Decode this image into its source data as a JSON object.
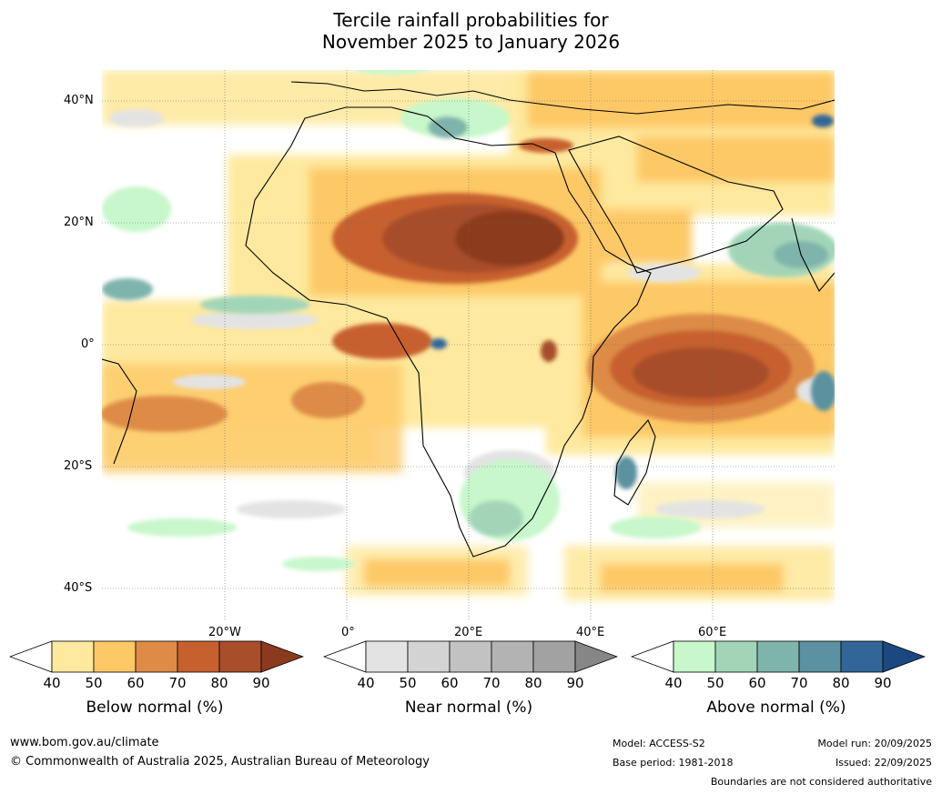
{
  "title": {
    "line1": "Tercile rainfall probabilities for",
    "line2": "November 2025 to January 2026"
  },
  "map": {
    "lat_labels": [
      "40°N",
      "20°N",
      "0°",
      "20°S",
      "40°S"
    ],
    "lon_labels": [
      "20°W",
      "0°",
      "20°E",
      "40°E",
      "60°E"
    ]
  },
  "colorbars": [
    {
      "label": "Below normal (%)",
      "ticks": [
        "40",
        "50",
        "60",
        "70",
        "80",
        "90"
      ],
      "colors": [
        "#ffffff",
        "#fee99e",
        "#fdc866",
        "#dd8b46",
        "#c7602f",
        "#a84e2a",
        "#8c3a1e"
      ]
    },
    {
      "label": "Near normal (%)",
      "ticks": [
        "40",
        "50",
        "60",
        "70",
        "80",
        "90"
      ],
      "colors": [
        "#ffffff",
        "#e3e3e3",
        "#d3d3d3",
        "#c2c2c2",
        "#b3b3b3",
        "#a2a2a2",
        "#868686"
      ]
    },
    {
      "label": "Above normal (%)",
      "ticks": [
        "40",
        "50",
        "60",
        "70",
        "80",
        "90"
      ],
      "colors": [
        "#ffffff",
        "#c7f7cb",
        "#a2d5b8",
        "#7fb4ab",
        "#5b91a0",
        "#336698",
        "#1b4880"
      ]
    }
  ],
  "footer": {
    "website": "www.bom.gov.au/climate",
    "copyright": "© Commonwealth of Australia 2025, Australian Bureau of Meteorology",
    "model": "Model: ACCESS-S2",
    "base_period": "Base period: 1981-2018",
    "model_run": "Model run: 20/09/2025",
    "issued": "Issued: 22/09/2025",
    "disclaimer": "Boundaries are not considered authoritative"
  }
}
